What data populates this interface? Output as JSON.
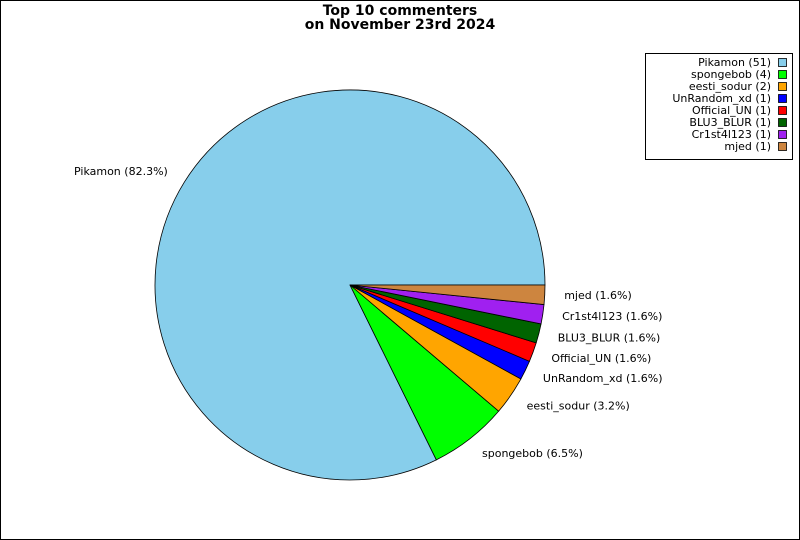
{
  "chart_data": {
    "type": "pie",
    "title": [
      "Top 10 commenters",
      "on November 23rd 2024"
    ],
    "categories": [
      "Pikamon",
      "spongebob",
      "eesti_sodur",
      "UnRandom_xd",
      "Official_UN",
      "BLU3_BLUR",
      "Cr1st4l123",
      "mjed"
    ],
    "values": [
      82.3,
      6.5,
      3.2,
      1.6,
      1.6,
      1.6,
      1.6,
      1.6
    ],
    "value_labels": [
      "Pikamon (82.3%)",
      "spongebob (6.5%)",
      "eesti_sodur (3.2%)",
      "UnRandom_xd (1.6%)",
      "Official_UN (1.6%)",
      "BLU3_BLUR (1.6%)",
      "Cr1st4l123 (1.6%)",
      "mjed (1.6%)"
    ],
    "legend": [
      "Pikamon (51)",
      "spongebob (4)",
      "eesti_sodur (2)",
      "UnRandom_xd (1)",
      "Official_UN (1)",
      "BLU3_BLUR (1)",
      "Cr1st4l123 (1)",
      "mjed (1)"
    ],
    "colors": [
      "#87ceeb",
      "#00ff00",
      "#ffa500",
      "#0000ff",
      "#ff0000",
      "#006400",
      "#a020f0",
      "#cd853f"
    ],
    "legend_position": "upper right"
  }
}
